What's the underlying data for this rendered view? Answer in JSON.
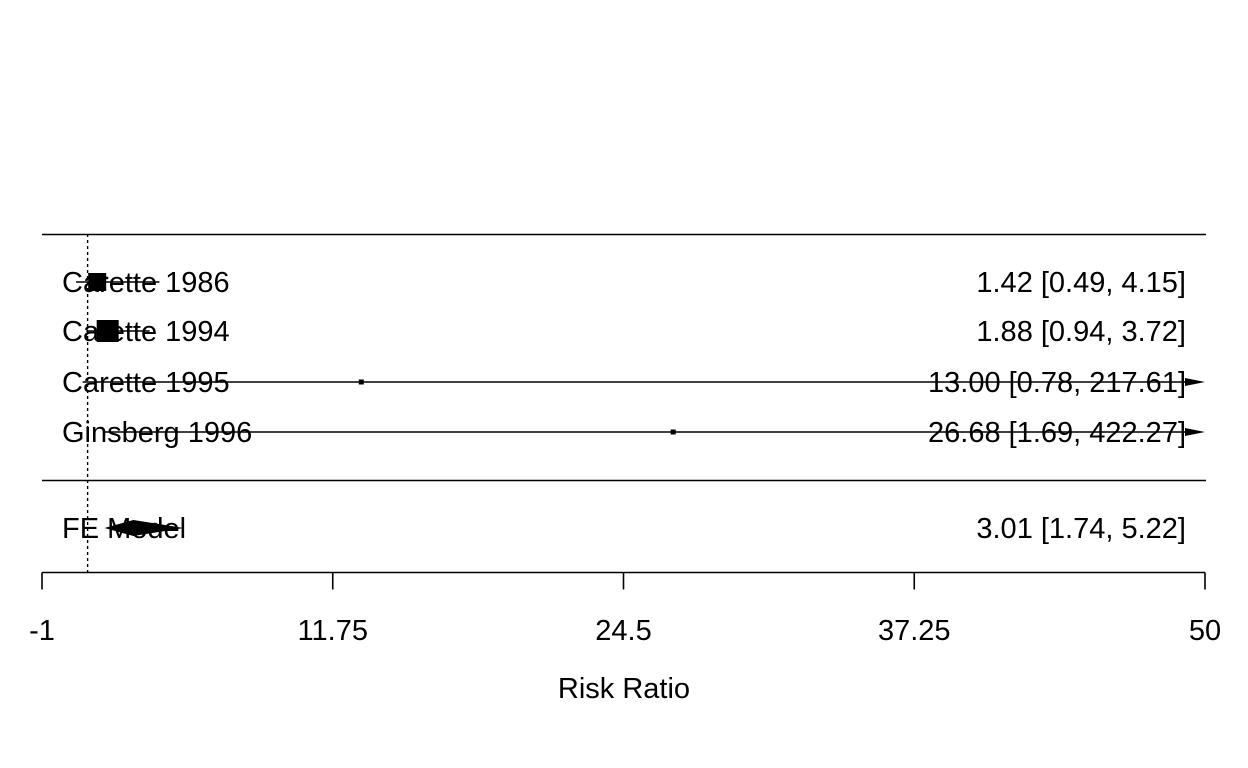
{
  "chart_data": {
    "type": "forest",
    "xlabel": "Risk Ratio",
    "xlim": [
      -1,
      50
    ],
    "ticks": [
      -1,
      11.75,
      24.5,
      37.25,
      50
    ],
    "tick_labels": [
      "-1",
      "11.75",
      "24.5",
      "37.25",
      "50"
    ],
    "reference_line": 1,
    "studies": [
      {
        "label": "Carette 1986",
        "estimate": 1.42,
        "lower": 0.49,
        "upper": 4.15,
        "text": "1.42 [0.49,   4.15]"
      },
      {
        "label": "Carette 1994",
        "estimate": 1.88,
        "lower": 0.94,
        "upper": 3.72,
        "text": "1.88 [0.94,   3.72]"
      },
      {
        "label": "Carette 1995",
        "estimate": 13.0,
        "lower": 0.78,
        "upper": 217.61,
        "text": "13.00 [0.78, 217.61]"
      },
      {
        "label": "Ginsberg 1996",
        "estimate": 26.68,
        "lower": 1.69,
        "upper": 422.27,
        "text": "26.68 [1.69, 422.27]"
      }
    ],
    "summary": {
      "label": "FE Model",
      "estimate": 3.01,
      "lower": 1.74,
      "upper": 5.22,
      "text": "3.01 [1.74,   5.22]"
    }
  }
}
